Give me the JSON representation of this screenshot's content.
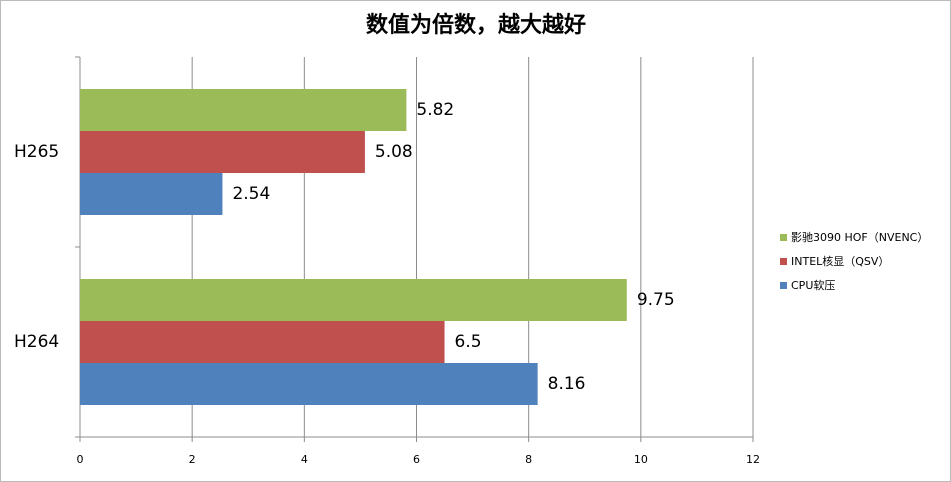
{
  "chart_data": {
    "type": "hbar",
    "title": "数值为倍数，越大越好",
    "categories": [
      "H265",
      "H264"
    ],
    "series": [
      {
        "name": "影驰3090 HOF（NVENC）",
        "color": "#9bbb59",
        "values": [
          5.82,
          9.75
        ]
      },
      {
        "name": "INTEL核显（QSV）",
        "color": "#c0504d",
        "values": [
          5.08,
          6.5
        ]
      },
      {
        "name": "CPU软压",
        "color": "#4f81bd",
        "values": [
          2.54,
          8.16
        ]
      }
    ],
    "xlim": [
      0,
      12
    ],
    "xticks": [
      0,
      2,
      4,
      6,
      8,
      10,
      12
    ],
    "grid": true
  }
}
